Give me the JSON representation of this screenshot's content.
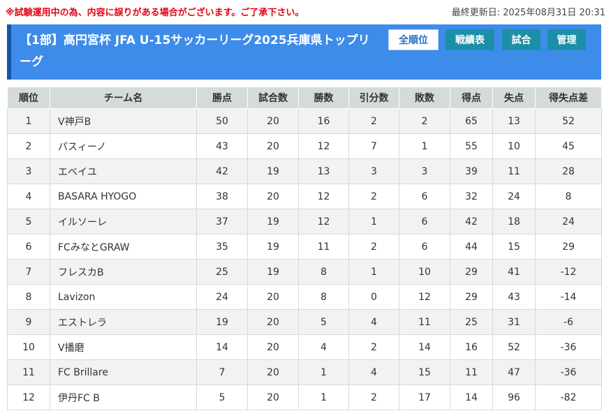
{
  "notice": "※試験運用中の為、内容に誤りがある場合がございます。ご了承下さい。",
  "updated": "最終更新日: 2025年08月31日 20:31",
  "league_title": "【1部】高円宮杯 JFA U-15サッカーリーグ2025兵庫県トップリーグ",
  "nav": {
    "standings": "全順位",
    "results": "戦績表",
    "matches": "試合",
    "admin": "管理"
  },
  "colors": {
    "banner": "#3d8cea",
    "banner_accent": "#1556a8",
    "active_button": "#1c8fa8",
    "notice": "#e60012",
    "header_bg": "#d5dbdb"
  },
  "table": {
    "headers": [
      "順位",
      "チーム名",
      "勝点",
      "試合数",
      "勝数",
      "引分数",
      "敗数",
      "得点",
      "失点",
      "得失点差"
    ],
    "rows": [
      [
        "1",
        "V神戸B",
        "50",
        "20",
        "16",
        "2",
        "2",
        "65",
        "13",
        "52"
      ],
      [
        "2",
        "パスィーノ",
        "43",
        "20",
        "12",
        "7",
        "1",
        "55",
        "10",
        "45"
      ],
      [
        "3",
        "エベイユ",
        "42",
        "19",
        "13",
        "3",
        "3",
        "39",
        "11",
        "28"
      ],
      [
        "4",
        "BASARA HYOGO",
        "38",
        "20",
        "12",
        "2",
        "6",
        "32",
        "24",
        "8"
      ],
      [
        "5",
        "イルソーレ",
        "37",
        "19",
        "12",
        "1",
        "6",
        "42",
        "18",
        "24"
      ],
      [
        "6",
        "FCみなとGRAW",
        "35",
        "19",
        "11",
        "2",
        "6",
        "44",
        "15",
        "29"
      ],
      [
        "7",
        "フレスカB",
        "25",
        "19",
        "8",
        "1",
        "10",
        "29",
        "41",
        "-12"
      ],
      [
        "8",
        "Lavizon",
        "24",
        "20",
        "8",
        "0",
        "12",
        "29",
        "43",
        "-14"
      ],
      [
        "9",
        "エストレラ",
        "19",
        "20",
        "5",
        "4",
        "11",
        "25",
        "31",
        "-6"
      ],
      [
        "10",
        "V播磨",
        "14",
        "20",
        "4",
        "2",
        "14",
        "16",
        "52",
        "-36"
      ],
      [
        "11",
        "FC Brillare",
        "7",
        "20",
        "1",
        "4",
        "15",
        "11",
        "47",
        "-36"
      ],
      [
        "12",
        "伊丹FC B",
        "5",
        "20",
        "1",
        "2",
        "17",
        "14",
        "96",
        "-82"
      ]
    ]
  }
}
